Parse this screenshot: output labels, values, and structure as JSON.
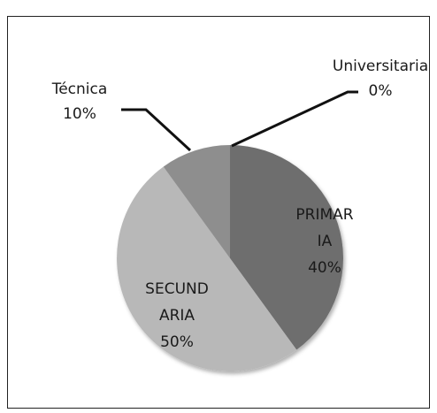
{
  "chart_data": {
    "type": "pie",
    "categories": [
      "PRIMARIA",
      "SECUNDARIA",
      "Técnica",
      "Universitaria"
    ],
    "values": [
      40,
      50,
      10,
      0
    ],
    "value_labels": [
      "40%",
      "50%",
      "10%",
      "0%"
    ],
    "colors": [
      "#6e6e6e",
      "#b8b8b8",
      "#8e8e8e",
      "#a0a0a0"
    ]
  }
}
